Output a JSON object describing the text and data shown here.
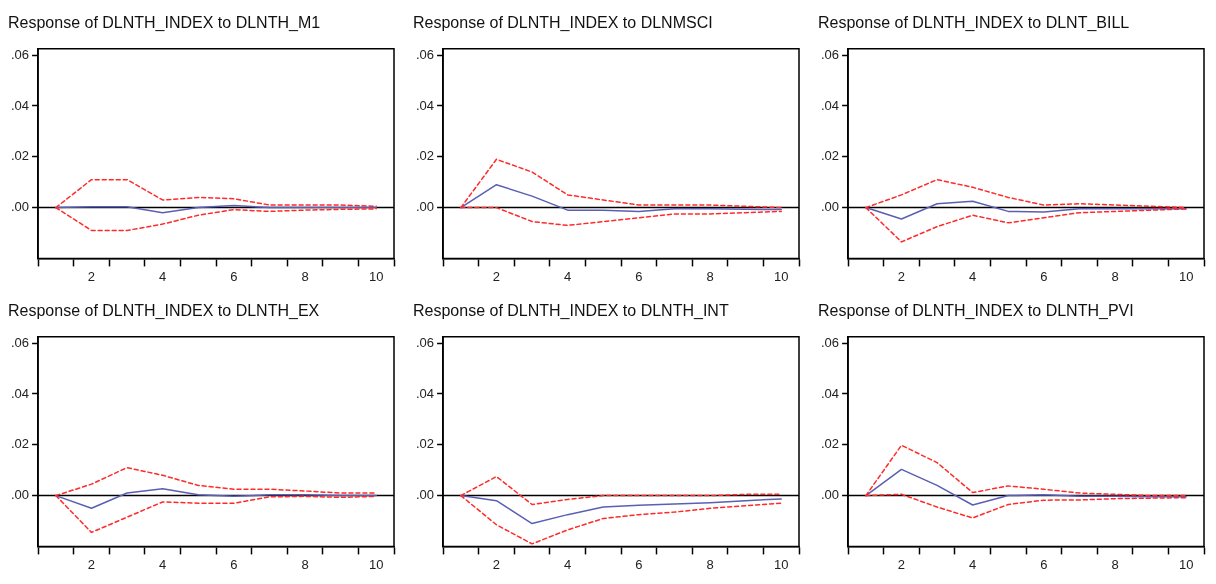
{
  "chart_data": [
    {
      "type": "line",
      "title": "Response of DLNTH_INDEX to DLNTH_M1",
      "categories": [
        null,
        "2",
        null,
        "4",
        null,
        "6",
        null,
        "8",
        null,
        "10"
      ],
      "ylim": [
        -0.02,
        0.0625
      ],
      "yticks": [
        {
          "value": 0,
          "label": ".00"
        },
        {
          "value": 0.02,
          "label": ".02"
        },
        {
          "value": 0.04,
          "label": ".04"
        },
        {
          "value": 0.06,
          "label": ".06"
        }
      ],
      "ref_lines": [
        {
          "axis": "y",
          "value": 0,
          "color": "#000000"
        }
      ],
      "series": [
        {
          "color": "#5a5fb4",
          "line_style": "solid",
          "values": [
            0,
            0.0003,
            0.0003,
            -0.002,
            0,
            0.0008,
            0,
            0,
            0,
            0
          ]
        },
        {
          "color": "#ff2a2a",
          "line_style": "dashed",
          "values": [
            0,
            0.011,
            0.011,
            0.003,
            0.004,
            0.0035,
            0.001,
            0.001,
            0.001,
            0.0005
          ]
        },
        {
          "color": "#ff2a2a",
          "line_style": "dashed",
          "values": [
            0,
            -0.009,
            -0.009,
            -0.0065,
            -0.003,
            -0.0008,
            -0.0015,
            -0.001,
            -0.0007,
            -0.0005
          ]
        }
      ]
    },
    {
      "type": "line",
      "title": "Response of DLNTH_INDEX to DLNMSCI",
      "categories": [
        null,
        "2",
        null,
        "4",
        null,
        "6",
        null,
        "8",
        null,
        "10"
      ],
      "ylim": [
        -0.02,
        0.0625
      ],
      "yticks": [
        {
          "value": 0,
          "label": ".00"
        },
        {
          "value": 0.02,
          "label": ".02"
        },
        {
          "value": 0.04,
          "label": ".04"
        },
        {
          "value": 0.06,
          "label": ".06"
        }
      ],
      "ref_lines": [
        {
          "axis": "y",
          "value": 0,
          "color": "#000000"
        }
      ],
      "series": [
        {
          "color": "#5a5fb4",
          "line_style": "solid",
          "values": [
            0,
            0.009,
            0.0045,
            -0.001,
            -0.001,
            -0.0015,
            -0.0005,
            -0.0005,
            -0.0007,
            -0.0008
          ]
        },
        {
          "color": "#ff2a2a",
          "line_style": "dashed",
          "values": [
            0,
            0.019,
            0.014,
            0.005,
            0.003,
            0.001,
            0.001,
            0.001,
            0.0005,
            0
          ]
        },
        {
          "color": "#ff2a2a",
          "line_style": "dashed",
          "values": [
            0,
            0,
            -0.0055,
            -0.007,
            -0.0055,
            -0.004,
            -0.0025,
            -0.0025,
            -0.002,
            -0.0015
          ]
        }
      ]
    },
    {
      "type": "line",
      "title": "Response of DLNTH_INDEX to DLNT_BILL",
      "categories": [
        null,
        "2",
        null,
        "4",
        null,
        "6",
        null,
        "8",
        null,
        "10"
      ],
      "ylim": [
        -0.02,
        0.0625
      ],
      "yticks": [
        {
          "value": 0,
          "label": ".00"
        },
        {
          "value": 0.02,
          "label": ".02"
        },
        {
          "value": 0.04,
          "label": ".04"
        },
        {
          "value": 0.06,
          "label": ".06"
        }
      ],
      "ref_lines": [
        {
          "axis": "y",
          "value": 0,
          "color": "#000000"
        }
      ],
      "series": [
        {
          "color": "#5a5fb4",
          "line_style": "solid",
          "values": [
            0,
            -0.0045,
            0.0015,
            0.0025,
            -0.0015,
            -0.0017,
            -0.0005,
            -0.0005,
            -0.0005,
            -0.0005
          ]
        },
        {
          "color": "#ff2a2a",
          "line_style": "dashed",
          "values": [
            0,
            0.005,
            0.011,
            0.008,
            0.004,
            0.001,
            0.0015,
            0.001,
            0.0005,
            0
          ]
        },
        {
          "color": "#ff2a2a",
          "line_style": "dashed",
          "values": [
            0,
            -0.0135,
            -0.0075,
            -0.003,
            -0.006,
            -0.004,
            -0.002,
            -0.0015,
            -0.001,
            -0.0005
          ]
        }
      ]
    },
    {
      "type": "line",
      "title": "Response of DLNTH_INDEX to DLNTH_EX",
      "categories": [
        null,
        "2",
        null,
        "4",
        null,
        "6",
        null,
        "8",
        null,
        "10"
      ],
      "ylim": [
        -0.02,
        0.0625
      ],
      "yticks": [
        {
          "value": 0,
          "label": ".00"
        },
        {
          "value": 0.02,
          "label": ".02"
        },
        {
          "value": 0.04,
          "label": ".04"
        },
        {
          "value": 0.06,
          "label": ".06"
        }
      ],
      "ref_lines": [
        {
          "axis": "y",
          "value": 0,
          "color": "#000000"
        }
      ],
      "series": [
        {
          "color": "#5a5fb4",
          "line_style": "solid",
          "values": [
            0,
            -0.005,
            0.001,
            0.0027,
            0.0003,
            -0.0003,
            0.0003,
            0.0003,
            0,
            0
          ]
        },
        {
          "color": "#ff2a2a",
          "line_style": "dashed",
          "values": [
            0,
            0.0045,
            0.011,
            0.008,
            0.004,
            0.0025,
            0.0025,
            0.0018,
            0.001,
            0.001
          ]
        },
        {
          "color": "#ff2a2a",
          "line_style": "dashed",
          "values": [
            0,
            -0.0145,
            -0.0085,
            -0.0025,
            -0.003,
            -0.003,
            -0.0005,
            -0.0003,
            -0.0007,
            -0.0003
          ]
        }
      ]
    },
    {
      "type": "line",
      "title": "Response of DLNTH_INDEX to DLNTH_INT",
      "categories": [
        null,
        "2",
        null,
        "4",
        null,
        "6",
        null,
        "8",
        null,
        "10"
      ],
      "ylim": [
        -0.02,
        0.0625
      ],
      "yticks": [
        {
          "value": 0,
          "label": ".00"
        },
        {
          "value": 0.02,
          "label": ".02"
        },
        {
          "value": 0.04,
          "label": ".04"
        },
        {
          "value": 0.06,
          "label": ".06"
        }
      ],
      "ref_lines": [
        {
          "axis": "y",
          "value": 0,
          "color": "#000000"
        }
      ],
      "series": [
        {
          "color": "#5a5fb4",
          "line_style": "solid",
          "values": [
            0,
            -0.002,
            -0.011,
            -0.0075,
            -0.0045,
            -0.0038,
            -0.0033,
            -0.0028,
            -0.002,
            -0.0013
          ]
        },
        {
          "color": "#ff2a2a",
          "line_style": "dashed",
          "values": [
            0,
            0.0075,
            -0.0035,
            -0.0015,
            0,
            0,
            0,
            0,
            0.0005,
            0.0005
          ]
        },
        {
          "color": "#ff2a2a",
          "line_style": "dashed",
          "values": [
            0,
            -0.0115,
            -0.019,
            -0.0135,
            -0.009,
            -0.0075,
            -0.0065,
            -0.005,
            -0.004,
            -0.003
          ]
        }
      ]
    },
    {
      "type": "line",
      "title": "Response of DLNTH_INDEX to DLNTH_PVI",
      "categories": [
        null,
        "2",
        null,
        "4",
        null,
        "6",
        null,
        "8",
        null,
        "10"
      ],
      "ylim": [
        -0.02,
        0.0625
      ],
      "yticks": [
        {
          "value": 0,
          "label": ".00"
        },
        {
          "value": 0.02,
          "label": ".02"
        },
        {
          "value": 0.04,
          "label": ".04"
        },
        {
          "value": 0.06,
          "label": ".06"
        }
      ],
      "ref_lines": [
        {
          "axis": "y",
          "value": 0,
          "color": "#000000"
        }
      ],
      "series": [
        {
          "color": "#5a5fb4",
          "line_style": "solid",
          "values": [
            0,
            0.0103,
            0.004,
            -0.0037,
            0,
            0.0003,
            -0.0003,
            -0.0003,
            -0.0005,
            -0.0005
          ]
        },
        {
          "color": "#ff2a2a",
          "line_style": "dashed",
          "values": [
            0,
            0.0198,
            0.013,
            0.0012,
            0.0038,
            0.0025,
            0.001,
            0.0005,
            0,
            0
          ]
        },
        {
          "color": "#ff2a2a",
          "line_style": "dashed",
          "values": [
            0,
            0.0005,
            -0.0045,
            -0.0088,
            -0.0035,
            -0.0018,
            -0.0017,
            -0.0012,
            -0.001,
            -0.0008
          ]
        }
      ]
    }
  ]
}
